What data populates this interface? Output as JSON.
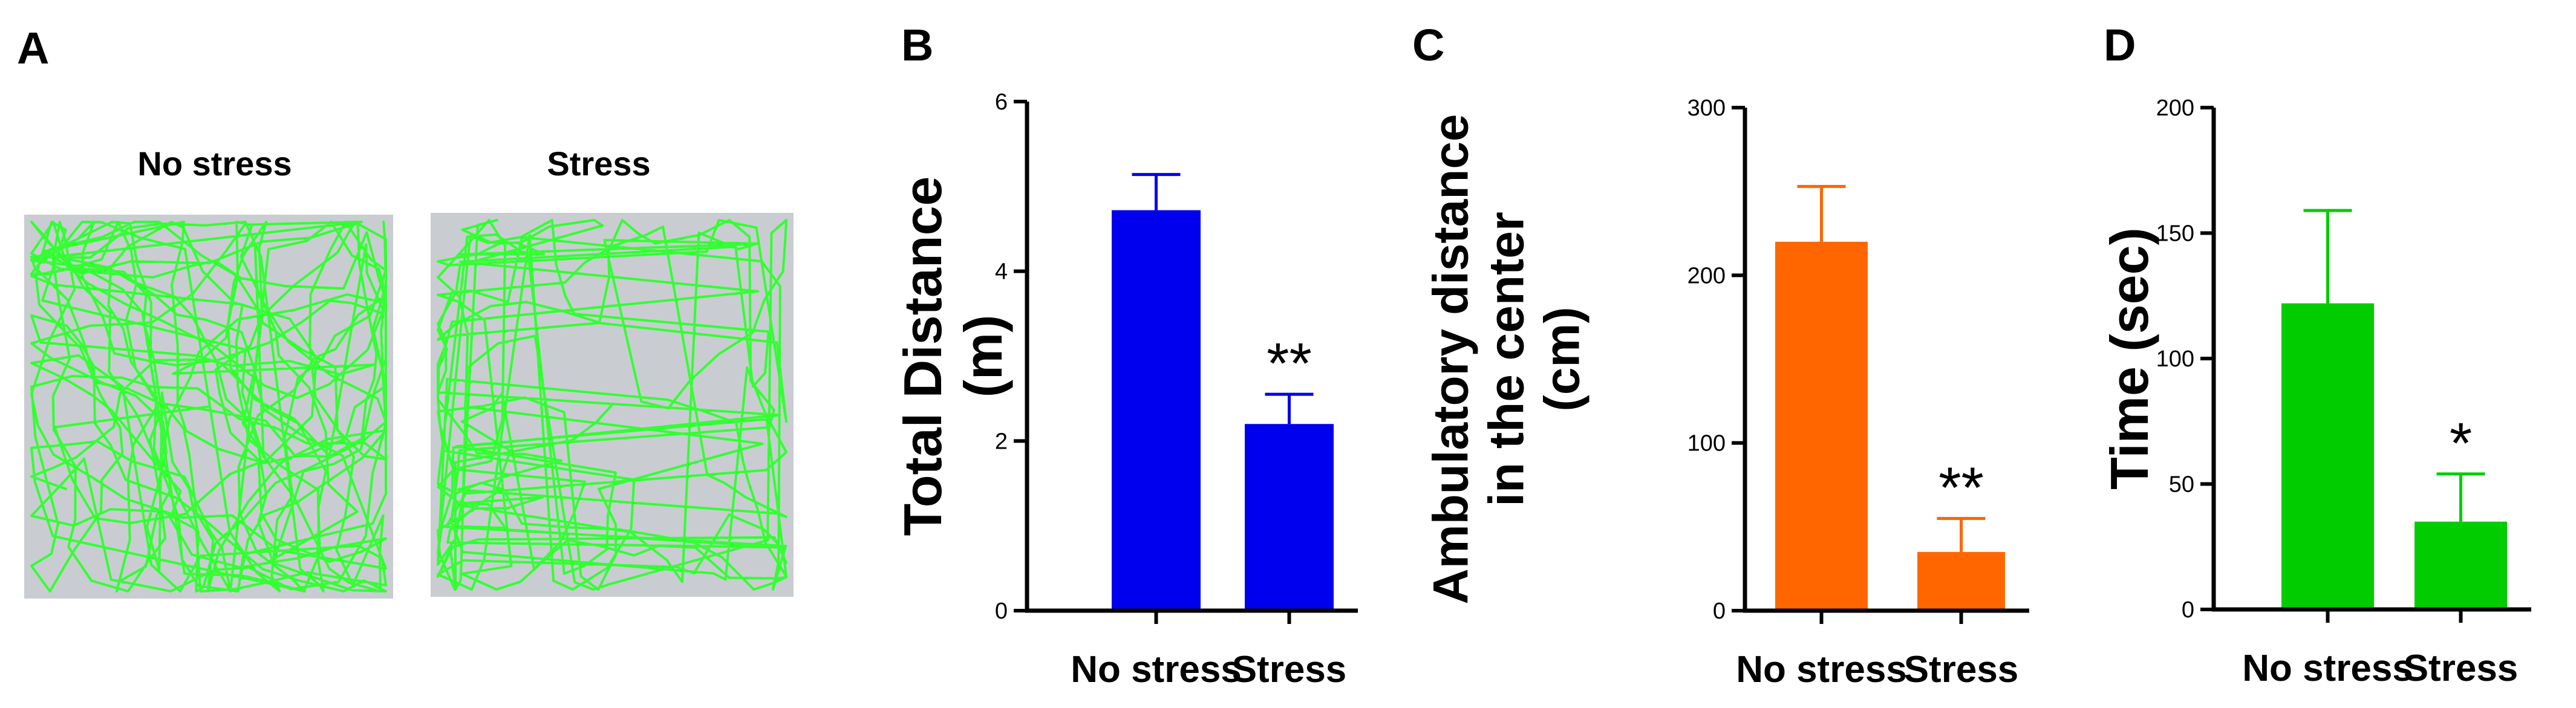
{
  "panels": {
    "a": {
      "letter": "A",
      "arena_labels": [
        "No stress",
        "Stress"
      ],
      "track_color": "#33ff33",
      "arena_color": "#c9cdd1"
    },
    "b": {
      "letter": "B"
    },
    "c": {
      "letter": "C"
    },
    "d": {
      "letter": "D"
    }
  },
  "chart_data": [
    {
      "type": "bar",
      "panel": "B",
      "categories": [
        "No stress",
        "Stress"
      ],
      "values": [
        4.72,
        2.2
      ],
      "errors": [
        0.42,
        0.35
      ],
      "significance": [
        "",
        "**"
      ],
      "ylabel": "Total Distance (m)",
      "ylim": [
        0,
        6
      ],
      "yticks": [
        0,
        2,
        4,
        6
      ],
      "color": "#0000ee"
    },
    {
      "type": "bar",
      "panel": "C",
      "categories": [
        "No stress",
        "Stress"
      ],
      "values": [
        220,
        35
      ],
      "errors": [
        33,
        20
      ],
      "significance": [
        "",
        "**"
      ],
      "ylabel": "Ambulatory distance in the center (cm)",
      "ylim": [
        0,
        300
      ],
      "yticks": [
        0,
        100,
        200,
        300
      ],
      "color": "#ff6600"
    },
    {
      "type": "bar",
      "panel": "D",
      "categories": [
        "No stress",
        "Stress"
      ],
      "values": [
        122,
        35
      ],
      "errors": [
        37,
        19
      ],
      "significance": [
        "",
        "*"
      ],
      "ylabel": "Time (sec)",
      "ylim": [
        0,
        200
      ],
      "yticks": [
        0,
        50,
        100,
        150,
        200
      ],
      "color": "#00cc00"
    }
  ]
}
